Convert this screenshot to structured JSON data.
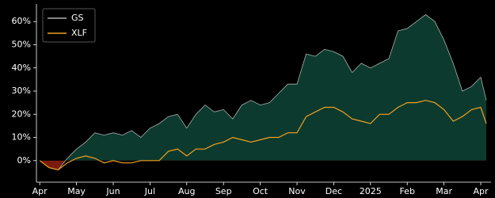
{
  "chart_data": {
    "type": "line",
    "x": [
      0,
      0.25,
      0.5,
      0.75,
      1,
      1.25,
      1.5,
      1.75,
      2,
      2.25,
      2.5,
      2.75,
      3,
      3.25,
      3.5,
      3.75,
      4,
      4.25,
      4.5,
      4.75,
      5,
      5.25,
      5.5,
      5.75,
      6,
      6.25,
      6.5,
      6.75,
      7,
      7.25,
      7.5,
      7.75,
      8,
      8.25,
      8.5,
      8.75,
      9,
      9.25,
      9.5,
      9.75,
      10,
      10.25,
      10.5,
      10.75,
      11,
      11.25,
      11.5,
      11.75,
      12,
      12.15
    ],
    "series": [
      {
        "name": "GS",
        "color": "#a9b3af",
        "fill_above": "#0d3a2e",
        "fill_below": "#7a1c0c",
        "values": [
          0,
          -3,
          -4,
          1,
          5,
          8,
          12,
          11,
          12,
          11,
          13,
          10,
          14,
          16,
          19,
          20,
          14,
          20,
          24,
          21,
          22,
          18,
          24,
          26,
          24,
          25,
          29,
          33,
          33,
          46,
          45,
          48,
          47,
          45,
          38,
          42,
          40,
          42,
          44,
          56,
          57,
          60,
          63,
          60,
          52,
          42,
          30,
          32,
          36,
          26
        ]
      },
      {
        "name": "XLF",
        "color": "#f0a020",
        "values": [
          0,
          -3,
          -4,
          -1,
          1,
          2,
          1,
          -1,
          0,
          -1,
          -1,
          0,
          0,
          0,
          4,
          5,
          2,
          5,
          5,
          7,
          8,
          10,
          9,
          8,
          9,
          10,
          10,
          12,
          12,
          19,
          21,
          23,
          23,
          21,
          18,
          17,
          16,
          20,
          20,
          23,
          25,
          25,
          26,
          25,
          22,
          17,
          19,
          22,
          23,
          16
        ]
      }
    ],
    "xlim": [
      -0.09,
      12.28
    ],
    "xticks": [
      {
        "value": 0,
        "label": "Apr"
      },
      {
        "value": 1,
        "label": "May"
      },
      {
        "value": 2,
        "label": "Jun"
      },
      {
        "value": 3,
        "label": "Jul"
      },
      {
        "value": 4,
        "label": "Aug"
      },
      {
        "value": 5,
        "label": "Sep"
      },
      {
        "value": 6,
        "label": "Oct"
      },
      {
        "value": 7,
        "label": "Nov"
      },
      {
        "value": 8,
        "label": "Dec"
      },
      {
        "value": 9,
        "label": "2025"
      },
      {
        "value": 10,
        "label": "Feb"
      },
      {
        "value": 11,
        "label": "Mar"
      },
      {
        "value": 12,
        "label": "Apr"
      }
    ],
    "ylim": [
      -9.3,
      67.6
    ],
    "yticks": [
      {
        "value": 0,
        "label": "0%"
      },
      {
        "value": 10,
        "label": "10%"
      },
      {
        "value": 20,
        "label": "20%"
      },
      {
        "value": 30,
        "label": "30%"
      },
      {
        "value": 40,
        "label": "40%"
      },
      {
        "value": 50,
        "label": "50%"
      },
      {
        "value": 60,
        "label": "60%"
      }
    ],
    "legend": "upper-left"
  }
}
